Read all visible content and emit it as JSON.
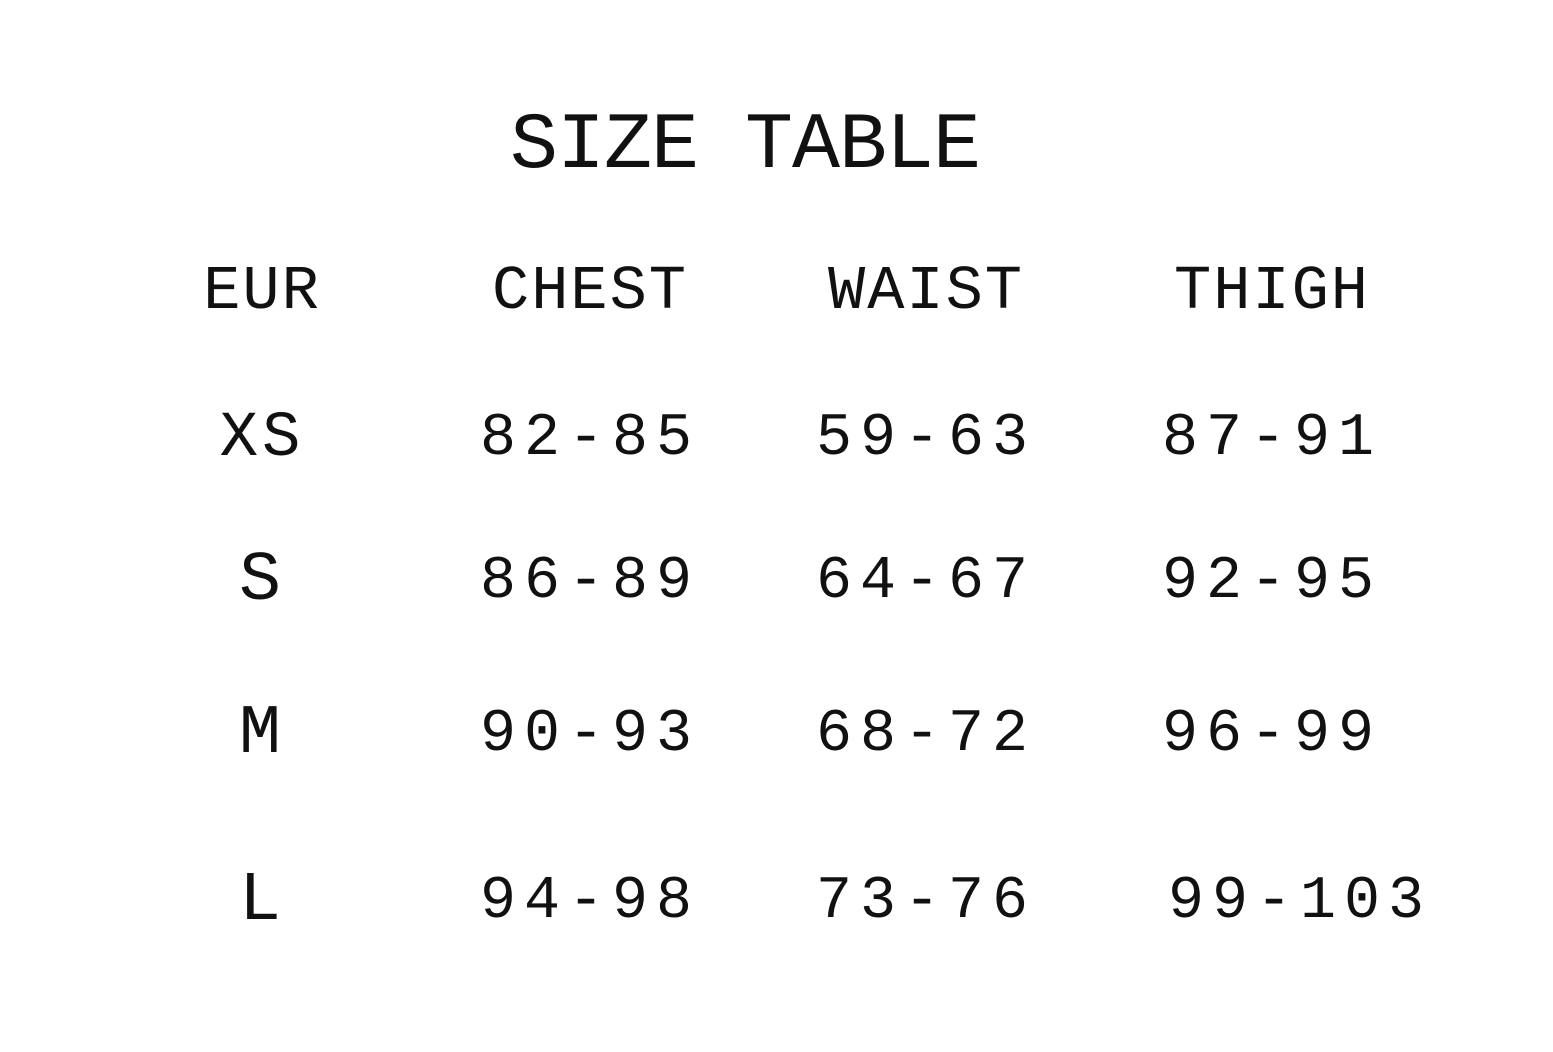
{
  "title": "SIZE TABLE",
  "columns": [
    "EUR",
    "CHEST",
    "WAIST",
    "THIGH"
  ],
  "rows": [
    [
      "XS",
      "82-85",
      "59-63",
      "87-91"
    ],
    [
      "S",
      "86-89",
      "64-67",
      "92-95"
    ],
    [
      "M",
      "90-93",
      "68-72",
      "96-99"
    ],
    [
      "L",
      "94-98",
      "73-76",
      "99-103"
    ]
  ]
}
